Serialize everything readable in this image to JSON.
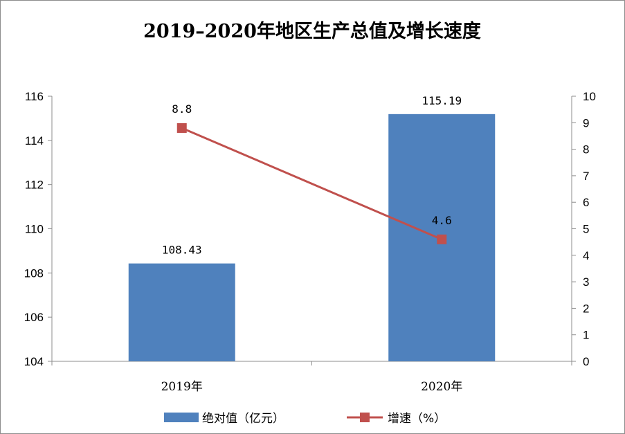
{
  "chart_data": {
    "type": "bar",
    "title": "2019–2020年地区生产总值及增长速度",
    "categories": [
      "2019年",
      "2020年"
    ],
    "series": [
      {
        "name": "绝对值（亿元）",
        "type": "bar",
        "axis": "left",
        "values": [
          108.43,
          115.19
        ],
        "labels": [
          "108.43",
          "115.19"
        ]
      },
      {
        "name": "增速（%）",
        "type": "line",
        "axis": "right",
        "values": [
          8.8,
          4.6
        ],
        "labels": [
          "8.8",
          "4.6"
        ]
      }
    ],
    "y_left": {
      "lim": [
        104,
        116
      ],
      "ticks": [
        104,
        106,
        108,
        110,
        112,
        114,
        116
      ],
      "tick_labels": [
        "104",
        "106",
        "108",
        "110",
        "112",
        "114",
        "116"
      ]
    },
    "y_right": {
      "lim": [
        0,
        10
      ],
      "ticks": [
        0,
        1,
        2,
        3,
        4,
        5,
        6,
        7,
        8,
        9,
        10
      ],
      "tick_labels": [
        "0",
        "1",
        "2",
        "3",
        "4",
        "5",
        "6",
        "7",
        "8",
        "9",
        "10"
      ]
    },
    "grid": false,
    "legend_position": "bottom",
    "colors": {
      "bar": "#4f81bd",
      "line": "#c0504d",
      "axis": "#8c8c8c"
    }
  }
}
